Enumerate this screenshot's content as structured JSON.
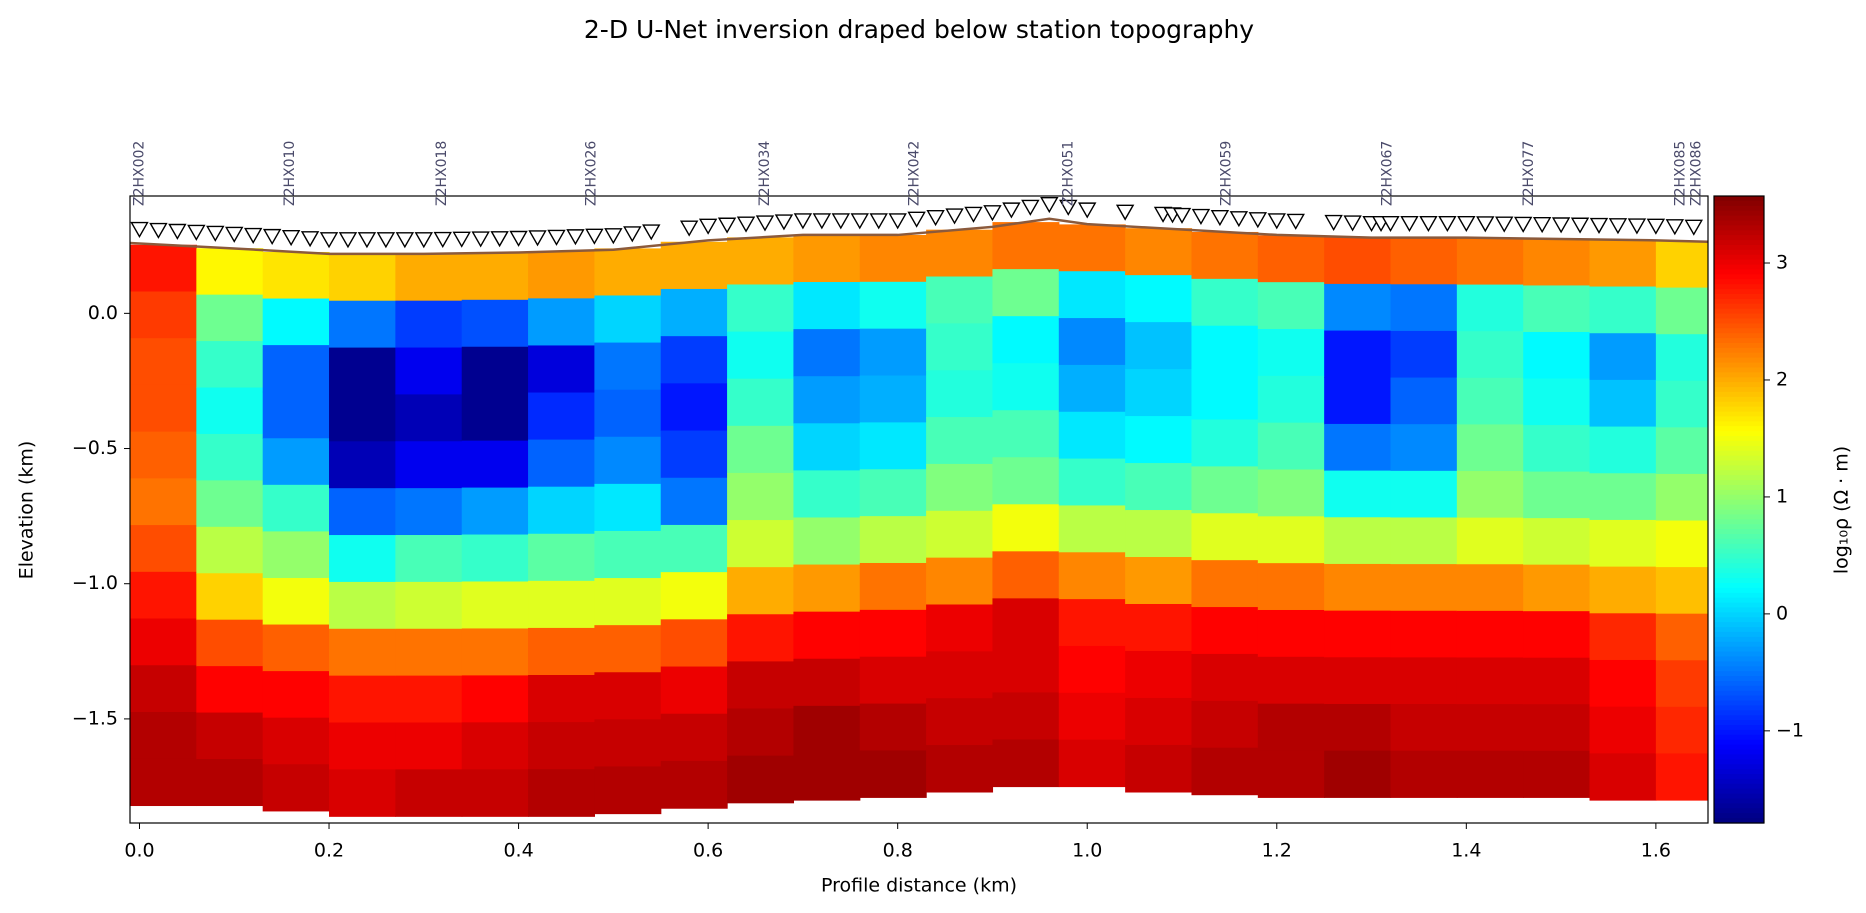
{
  "chart_data": {
    "type": "heatmap",
    "title": "2-D U-Net inversion draped below station topography",
    "xlabel": "Profile distance (km)",
    "ylabel": "Elevation (km)",
    "colorbar_label": "log₁₀ρ (Ω · m)",
    "colormap": "jet",
    "xlim": [
      -0.01,
      1.655
    ],
    "ylim": [
      -1.885,
      0.434
    ],
    "xticks": [
      {
        "value": 0,
        "label": "0.0"
      },
      0.2,
      0.4,
      0.6,
      0.8,
      {
        "value": 1,
        "label": "1.0"
      },
      1.2,
      1.4,
      1.6
    ],
    "yticks": [
      {
        "value": 0,
        "label": "0.0"
      },
      {
        "value": -0.5,
        "label": "−0.5"
      },
      {
        "value": -1,
        "label": "−1.0"
      },
      {
        "value": -1.5,
        "label": "−1.5"
      }
    ],
    "clim": [
      -1.788,
      3.573
    ],
    "cticks": [
      {
        "value": -1,
        "label": "−1"
      },
      0,
      1,
      2,
      3
    ],
    "topography": {
      "color": "#8b5a3c",
      "x": [
        -0.01,
        0.1,
        0.2,
        0.3,
        0.4,
        0.5,
        0.6,
        0.7,
        0.8,
        0.9,
        0.96,
        1.0,
        1.1,
        1.2,
        1.3,
        1.4,
        1.5,
        1.6,
        1.655
      ],
      "elevation": [
        0.26,
        0.24,
        0.22,
        0.22,
        0.225,
        0.235,
        0.27,
        0.29,
        0.29,
        0.32,
        0.35,
        0.33,
        0.31,
        0.29,
        0.28,
        0.28,
        0.275,
        0.27,
        0.265
      ]
    },
    "stations": {
      "x": [
        0,
        0.02,
        0.04,
        0.06,
        0.08,
        0.1,
        0.12,
        0.14,
        0.16,
        0.18,
        0.2,
        0.22,
        0.24,
        0.26,
        0.28,
        0.3,
        0.32,
        0.34,
        0.36,
        0.38,
        0.4,
        0.42,
        0.44,
        0.46,
        0.48,
        0.5,
        0.52,
        0.54,
        0.58,
        0.6,
        0.62,
        0.64,
        0.66,
        0.68,
        0.7,
        0.72,
        0.74,
        0.76,
        0.78,
        0.8,
        0.82,
        0.84,
        0.86,
        0.88,
        0.9,
        0.92,
        0.94,
        0.96,
        0.98,
        1.0,
        1.04,
        1.08,
        1.09,
        1.1,
        1.12,
        1.14,
        1.16,
        1.18,
        1.2,
        1.22,
        1.26,
        1.28,
        1.3,
        1.31,
        1.32,
        1.34,
        1.36,
        1.38,
        1.4,
        1.42,
        1.44,
        1.46,
        1.48,
        1.5,
        1.52,
        1.54,
        1.56,
        1.58,
        1.6,
        1.62,
        1.64
      ],
      "labels": [
        {
          "name": "Z2HX002",
          "x": 0
        },
        {
          "name": "Z2HX010",
          "x": 0.159
        },
        {
          "name": "Z2HX018",
          "x": 0.319
        },
        {
          "name": "Z2HX026",
          "x": 0.477
        },
        {
          "name": "Z2HX034",
          "x": 0.66
        },
        {
          "name": "Z2HX042",
          "x": 0.818
        },
        {
          "name": "Z2HX051",
          "x": 0.98
        },
        {
          "name": "Z2HX059",
          "x": 1.147
        },
        {
          "name": "Z2HX067",
          "x": 1.317
        },
        {
          "name": "Z2HX077",
          "x": 1.466
        },
        {
          "name": "Z2HX085",
          "x": 1.626
        },
        {
          "name": "Z2HX086",
          "x": 1.643
        }
      ]
    },
    "grid": {
      "x_edges": [
        -0.01,
        0.06,
        0.13,
        0.2,
        0.27,
        0.34,
        0.41,
        0.48,
        0.55,
        0.62,
        0.69,
        0.76,
        0.83,
        0.9,
        0.97,
        1.04,
        1.11,
        1.18,
        1.25,
        1.32,
        1.39,
        1.46,
        1.53,
        1.6,
        1.655
      ],
      "bottom": [
        -1.82,
        -1.82,
        -1.84,
        -1.86,
        -1.86,
        -1.86,
        -1.86,
        -1.85,
        -1.83,
        -1.81,
        -1.8,
        -1.79,
        -1.77,
        -1.75,
        -1.75,
        -1.77,
        -1.78,
        -1.79,
        -1.79,
        -1.79,
        -1.79,
        -1.79,
        -1.8,
        -1.8
      ],
      "values": [
        [
          2.8,
          2.6,
          2.5,
          2.5,
          2.4,
          2.3,
          2.5,
          2.8,
          3.0,
          3.2,
          3.3,
          3.3
        ],
        [
          1.6,
          0.8,
          0.5,
          0.3,
          0.5,
          0.8,
          1.2,
          1.8,
          2.5,
          2.9,
          3.2,
          3.3
        ],
        [
          1.7,
          0.2,
          -0.6,
          -0.6,
          -0.3,
          0.5,
          1.0,
          1.5,
          2.4,
          2.9,
          3.1,
          3.2
        ],
        [
          1.8,
          -0.5,
          -1.7,
          -1.7,
          -1.5,
          -0.6,
          0.3,
          1.2,
          2.3,
          2.8,
          3.0,
          3.1
        ],
        [
          2.0,
          -0.8,
          -1.2,
          -1.5,
          -1.2,
          -0.5,
          0.6,
          1.3,
          2.3,
          2.8,
          3.0,
          3.2
        ],
        [
          2.0,
          -0.7,
          -1.7,
          -1.7,
          -1.2,
          -0.3,
          0.5,
          1.4,
          2.3,
          2.9,
          3.1,
          3.2
        ],
        [
          2.1,
          -0.3,
          -1.3,
          -0.9,
          -0.6,
          0.0,
          0.7,
          1.4,
          2.4,
          3.1,
          3.2,
          3.3
        ],
        [
          2.0,
          0.0,
          -0.5,
          -0.6,
          -0.4,
          0.1,
          0.6,
          1.4,
          2.4,
          3.1,
          3.2,
          3.3
        ],
        [
          2.0,
          -0.2,
          -0.8,
          -1.0,
          -0.8,
          -0.5,
          0.6,
          1.5,
          2.5,
          3.0,
          3.2,
          3.3
        ],
        [
          2.0,
          0.5,
          0.3,
          0.5,
          0.8,
          1.0,
          1.3,
          2.0,
          2.8,
          3.2,
          3.3,
          3.4
        ],
        [
          2.1,
          0.1,
          -0.5,
          -0.3,
          0.0,
          0.5,
          1.0,
          2.1,
          2.9,
          3.2,
          3.4,
          3.4
        ],
        [
          2.2,
          0.3,
          -0.3,
          -0.2,
          0.1,
          0.6,
          1.2,
          2.3,
          2.9,
          3.1,
          3.3,
          3.4
        ],
        [
          2.2,
          0.6,
          0.5,
          0.4,
          0.6,
          0.9,
          1.3,
          2.2,
          3.0,
          3.1,
          3.2,
          3.3
        ],
        [
          2.3,
          0.8,
          0.2,
          0.3,
          0.6,
          0.8,
          1.5,
          2.4,
          3.1,
          3.1,
          3.2,
          3.3
        ],
        [
          2.3,
          0.1,
          -0.4,
          -0.2,
          0.1,
          0.5,
          1.2,
          2.2,
          2.8,
          2.9,
          3.0,
          3.1
        ],
        [
          2.2,
          0.2,
          -0.1,
          0.0,
          0.2,
          0.6,
          1.2,
          2.1,
          2.8,
          3.0,
          3.1,
          3.2
        ],
        [
          2.3,
          0.5,
          0.2,
          0.2,
          0.4,
          0.8,
          1.4,
          2.3,
          2.9,
          3.1,
          3.2,
          3.3
        ],
        [
          2.4,
          0.6,
          0.3,
          0.4,
          0.6,
          0.9,
          1.4,
          2.3,
          2.9,
          3.1,
          3.3,
          3.3
        ],
        [
          2.5,
          -0.4,
          -1.0,
          -1.0,
          -0.5,
          0.3,
          1.2,
          2.2,
          2.9,
          3.1,
          3.3,
          3.4
        ],
        [
          2.4,
          -0.5,
          -0.8,
          -0.6,
          -0.4,
          0.3,
          1.2,
          2.2,
          2.9,
          3.1,
          3.2,
          3.3
        ],
        [
          2.3,
          0.4,
          0.5,
          0.6,
          0.8,
          1.0,
          1.4,
          2.2,
          2.9,
          3.1,
          3.2,
          3.3
        ],
        [
          2.2,
          0.6,
          0.2,
          0.3,
          0.5,
          0.8,
          1.3,
          2.1,
          2.9,
          3.1,
          3.2,
          3.3
        ],
        [
          2.1,
          0.5,
          -0.3,
          -0.1,
          0.4,
          0.8,
          1.4,
          2.0,
          2.7,
          2.9,
          3.0,
          3.1
        ],
        [
          1.8,
          0.8,
          0.4,
          0.5,
          0.7,
          1.0,
          1.5,
          1.9,
          2.4,
          2.6,
          2.7,
          2.8
        ]
      ]
    }
  }
}
